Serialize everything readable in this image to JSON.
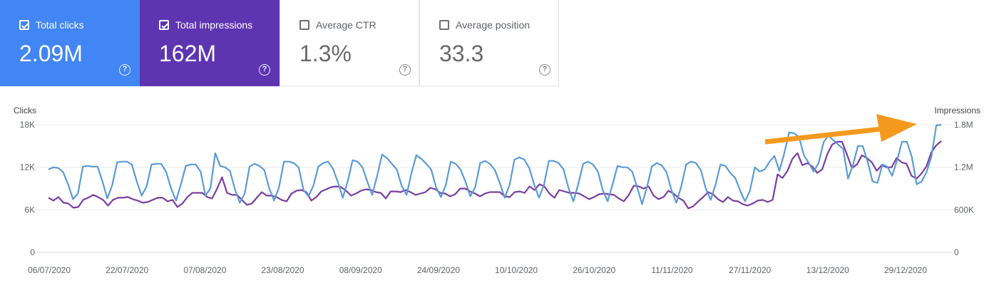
{
  "cards": [
    {
      "key": "clicks",
      "label": "Total clicks",
      "value": "2.09M",
      "checked": true,
      "color": "#4285f4"
    },
    {
      "key": "impressions",
      "label": "Total impressions",
      "value": "162M",
      "checked": true,
      "color": "#5e35b1"
    },
    {
      "key": "ctr",
      "label": "Average CTR",
      "value": "1.3%",
      "checked": false,
      "color": "#ffffff"
    },
    {
      "key": "position",
      "label": "Average position",
      "value": "33.3",
      "checked": false,
      "color": "#ffffff"
    }
  ],
  "help_glyph": "?",
  "chart_data": {
    "type": "line",
    "ylabel_left": "Clicks",
    "ylabel_right": "Impressions",
    "yticks_left": [
      "18K",
      "12K",
      "6K",
      "0"
    ],
    "yticks_right": [
      "1.8M",
      "1.2M",
      "600K",
      "0"
    ],
    "ylim_left": [
      0,
      18000
    ],
    "ylim_right": [
      0,
      1800000
    ],
    "grid": true,
    "legend": "none",
    "x_tick_labels": [
      "06/07/2020",
      "22/07/2020",
      "07/08/2020",
      "23/08/2020",
      "08/09/2020",
      "24/09/2020",
      "10/10/2020",
      "26/10/2020",
      "11/11/2020",
      "27/11/2020",
      "13/12/2020",
      "29/12/2020"
    ],
    "x_start": "06/07/2020",
    "x_end": "03/01/2021",
    "series": [
      {
        "color": "#7a3fa0",
        "axis": "left",
        "values": [
          7700,
          7300,
          7800,
          7000,
          6900,
          6300,
          6400,
          7400,
          7700,
          8100,
          7800,
          7400,
          6600,
          7400,
          7700,
          7700,
          7800,
          7500,
          7300,
          7000,
          7100,
          7400,
          7700,
          7700,
          7200,
          7400,
          6400,
          6900,
          7800,
          8400,
          8400,
          8400,
          7800,
          7600,
          9000,
          10600,
          8400,
          8100,
          8100,
          7400,
          6700,
          6900,
          7700,
          8500,
          8000,
          8000,
          7800,
          7400,
          7200,
          8300,
          8700,
          8800,
          8500,
          7300,
          7800,
          8600,
          8900,
          9200,
          9300,
          9200,
          8700,
          8000,
          8300,
          8700,
          8900,
          8800,
          8500,
          8400,
          7600,
          8600,
          8600,
          8500,
          8800,
          8500,
          8100,
          8300,
          8500,
          9100,
          8900,
          8400,
          8300,
          7900,
          8200,
          9000,
          9000,
          8600,
          8300,
          7900,
          8300,
          8500,
          8500,
          8500,
          7900,
          7800,
          8500,
          8600,
          8400,
          9300,
          8800,
          9600,
          9300,
          8300,
          7700,
          8800,
          8600,
          8400,
          8400,
          8300,
          7900,
          7500,
          7800,
          8200,
          8300,
          8200,
          8100,
          7600,
          7200,
          8100,
          9400,
          9300,
          9000,
          9300,
          8000,
          7500,
          7800,
          8700,
          8300,
          7700,
          7300,
          6200,
          6500,
          7200,
          7800,
          8500,
          8200,
          7500,
          7100,
          7800,
          7300,
          7200,
          6800,
          6600,
          6900,
          7300,
          7400,
          7100,
          7400,
          11000,
          10500,
          11500,
          13200,
          14000,
          12300,
          12600,
          12100,
          11200,
          11700,
          13800,
          15200,
          15600,
          15600,
          13800,
          11900,
          12400,
          13700,
          13300,
          12700,
          11500,
          12300,
          12000,
          12000,
          13300,
          12700,
          12500,
          10800,
          10400,
          11100,
          12100,
          14100,
          15100,
          15700
        ]
      },
      {
        "color": "#5b9bd5",
        "axis": "right",
        "values": [
          1170000,
          1200000,
          1190000,
          1130000,
          960000,
          750000,
          830000,
          1210000,
          1220000,
          1210000,
          1210000,
          1000000,
          760000,
          950000,
          1270000,
          1280000,
          1280000,
          1240000,
          1000000,
          800000,
          930000,
          1240000,
          1250000,
          1250000,
          1130000,
          900000,
          730000,
          960000,
          1220000,
          1240000,
          1240000,
          1140000,
          800000,
          900000,
          1400000,
          1220000,
          1200000,
          1150000,
          890000,
          700000,
          830000,
          1210000,
          1250000,
          1220000,
          1160000,
          900000,
          730000,
          920000,
          1280000,
          1280000,
          1260000,
          1200000,
          880000,
          790000,
          940000,
          1210000,
          1260000,
          1280000,
          1180000,
          990000,
          770000,
          1000000,
          1300000,
          1280000,
          1200000,
          1000000,
          810000,
          1080000,
          1380000,
          1330000,
          1250000,
          1170000,
          940000,
          810000,
          1120000,
          1370000,
          1320000,
          1250000,
          1170000,
          920000,
          780000,
          950000,
          1280000,
          1250000,
          1170000,
          1000000,
          790000,
          920000,
          1260000,
          1290000,
          1250000,
          1160000,
          980000,
          770000,
          950000,
          1310000,
          1340000,
          1310000,
          1190000,
          960000,
          770000,
          950000,
          1290000,
          1290000,
          1260000,
          1170000,
          910000,
          720000,
          960000,
          1250000,
          1280000,
          1240000,
          1140000,
          880000,
          720000,
          960000,
          1220000,
          1200000,
          1200000,
          1140000,
          920000,
          680000,
          920000,
          1210000,
          1260000,
          1230000,
          1130000,
          880000,
          700000,
          930000,
          1240000,
          1280000,
          1260000,
          1160000,
          900000,
          740000,
          960000,
          1240000,
          1220000,
          1120000,
          1050000,
          870000,
          720000,
          870000,
          1200000,
          1140000,
          1170000,
          1280000,
          1360000,
          1150000,
          1400000,
          1690000,
          1680000,
          1630000,
          1370000,
          1260000,
          1140000,
          1260000,
          1550000,
          1650000,
          1580000,
          1520000,
          1460000,
          1040000,
          1230000,
          1500000,
          1500000,
          1280000,
          1000000,
          980000,
          1240000,
          1210000,
          1080000,
          1300000,
          1560000,
          1560000,
          1350000,
          960000,
          1000000,
          1130000,
          1350000,
          1790000,
          1800000
        ]
      }
    ]
  },
  "arrow_color": "#f39a1e"
}
